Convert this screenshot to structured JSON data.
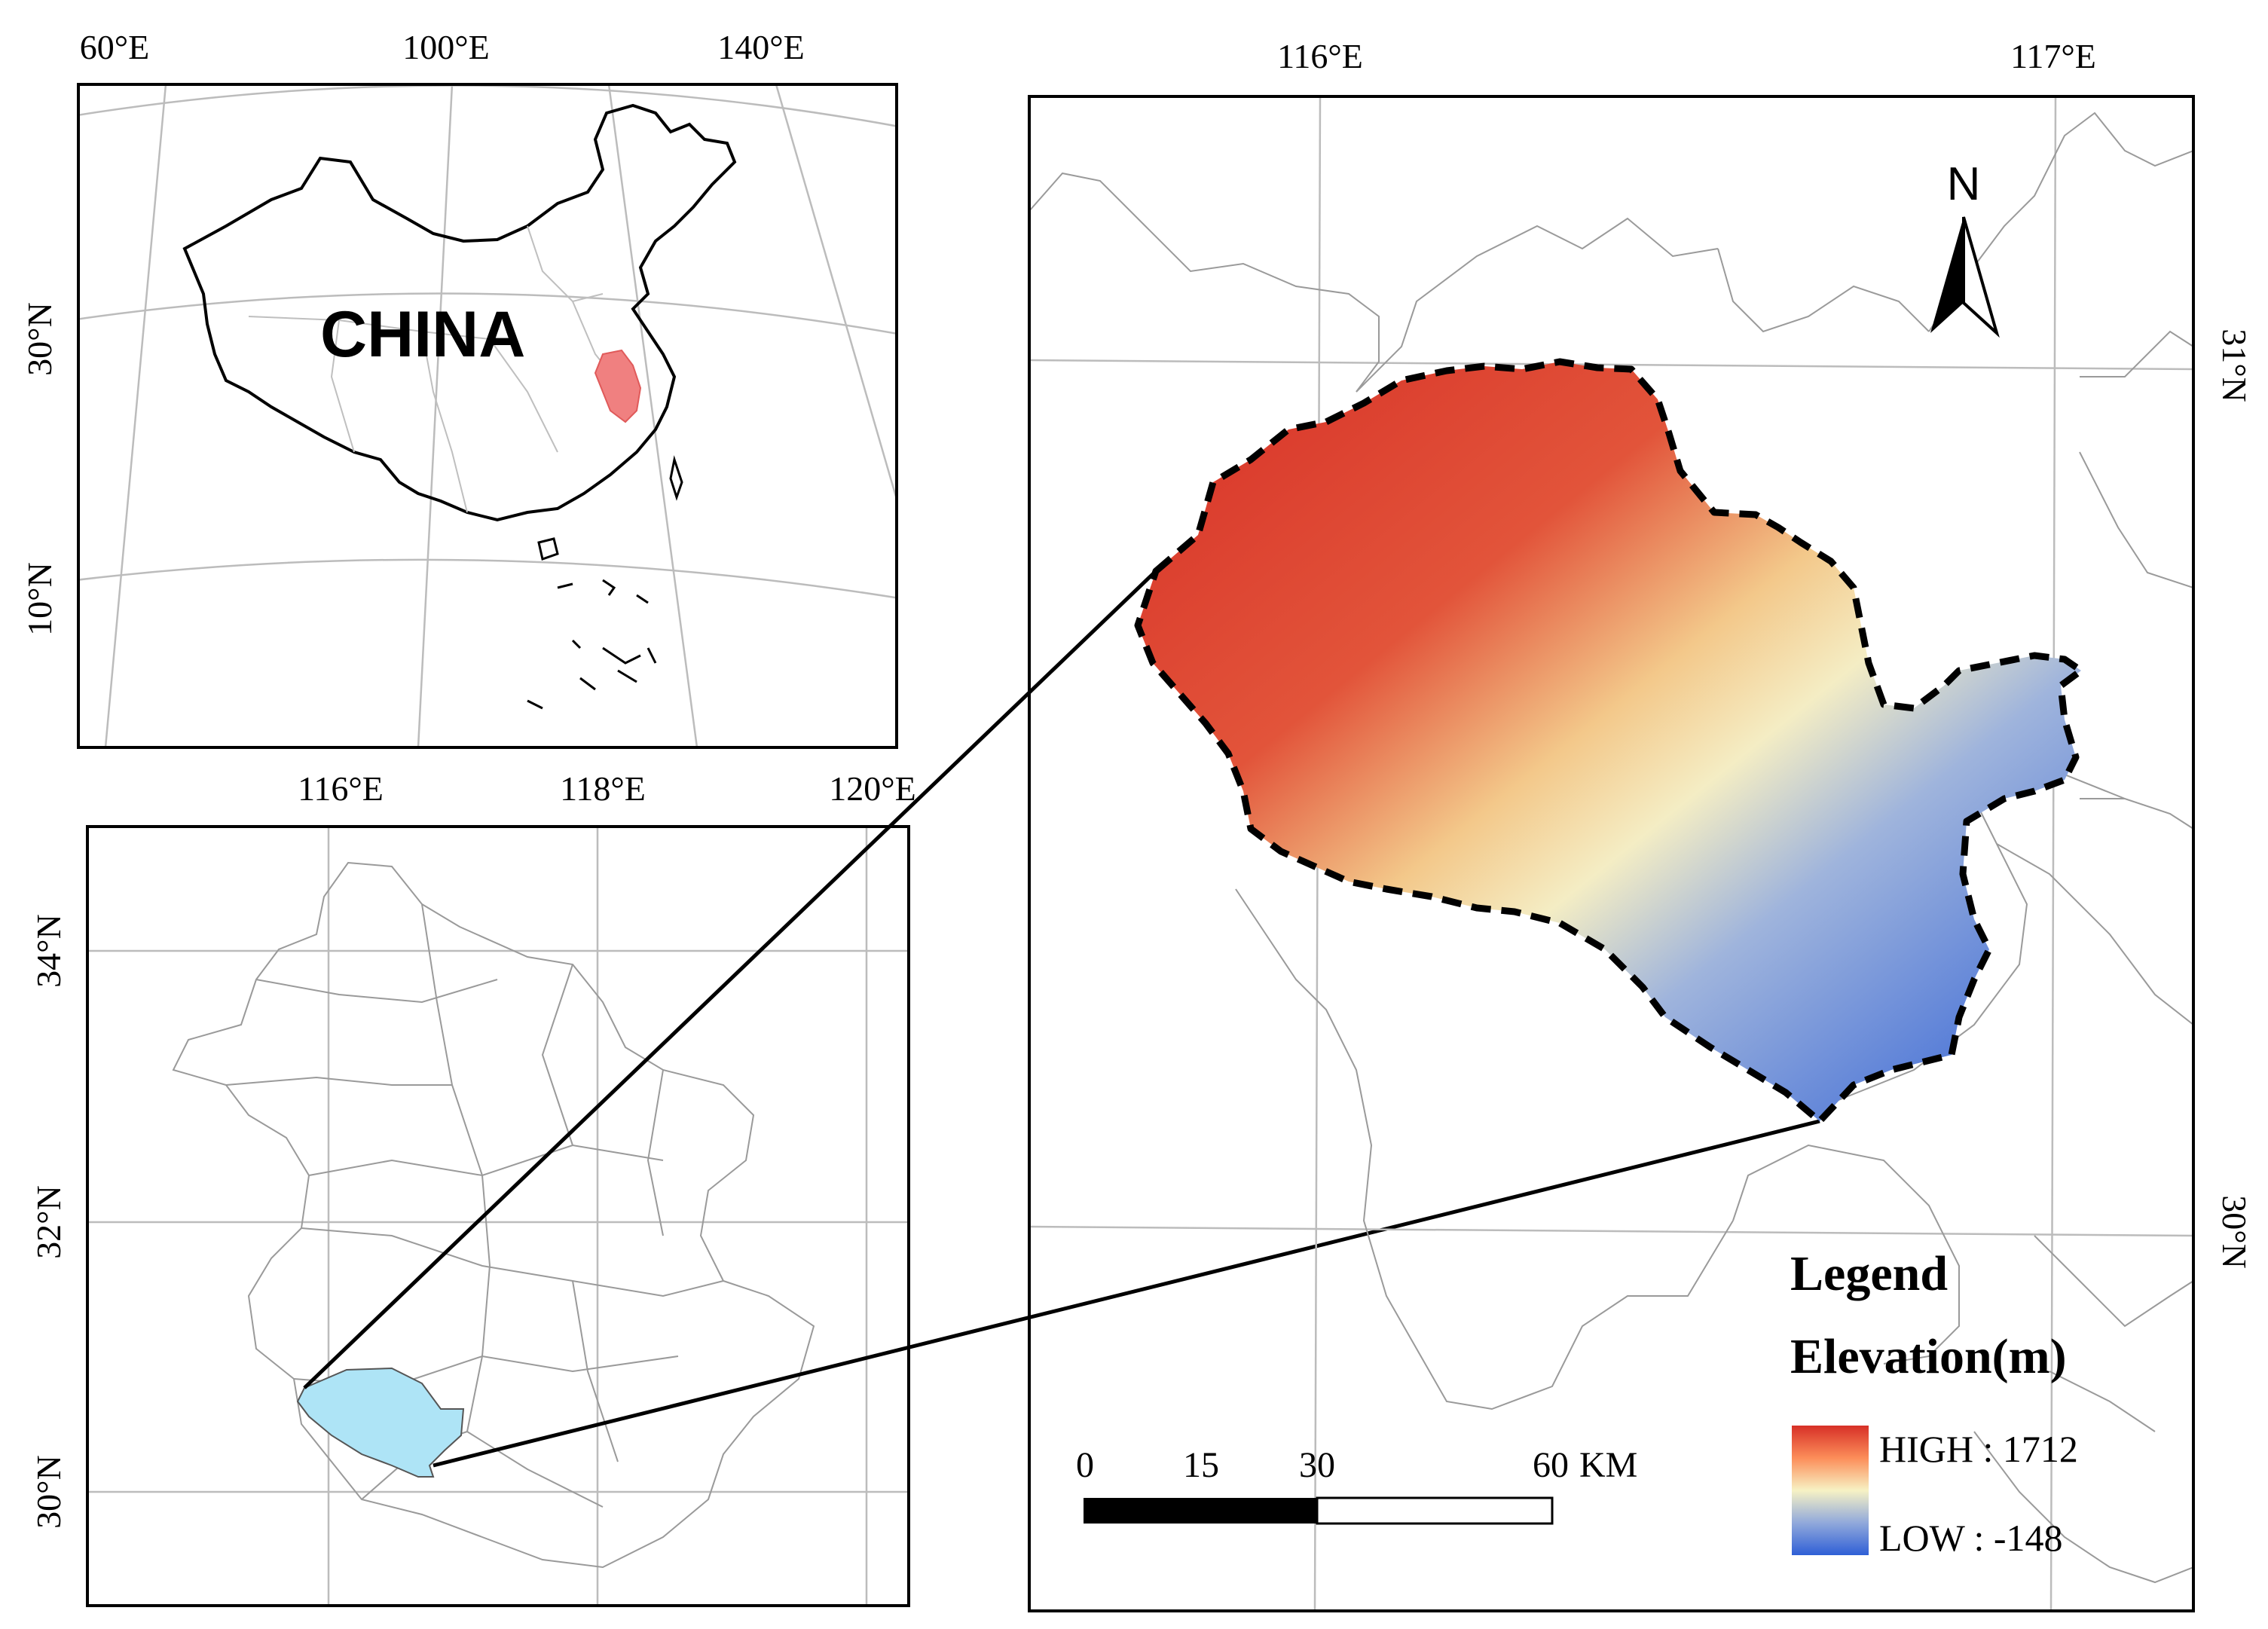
{
  "overview_map": {
    "lon_labels": [
      "60°E",
      "100°E",
      "140°E"
    ],
    "lat_labels": [
      "30°N",
      "10°N"
    ],
    "country_label": "CHINA",
    "highlight_color": "#f08080"
  },
  "province_map": {
    "lon_labels": [
      "116°E",
      "118°E",
      "120°E"
    ],
    "lat_labels": [
      "34°N",
      "32°N",
      "30°N"
    ],
    "highlight_color": "#aee4f6"
  },
  "detail_map": {
    "lon_labels": [
      "116°E",
      "117°E"
    ],
    "lat_labels": [
      "31°N",
      "30°N"
    ],
    "north_label": "N",
    "scale_bar": {
      "labels": [
        "0",
        "15",
        "30",
        "60"
      ],
      "unit": "KM"
    },
    "legend": {
      "title": "Legend",
      "subtitle": "Elevation(m)",
      "high_label": "HIGH : 1712",
      "low_label": "LOW : -148",
      "colors": [
        "#d73027",
        "#fc8d59",
        "#fee090",
        "#f5f0c8",
        "#91bfdb",
        "#4575b4",
        "#2f5fd6"
      ]
    }
  }
}
